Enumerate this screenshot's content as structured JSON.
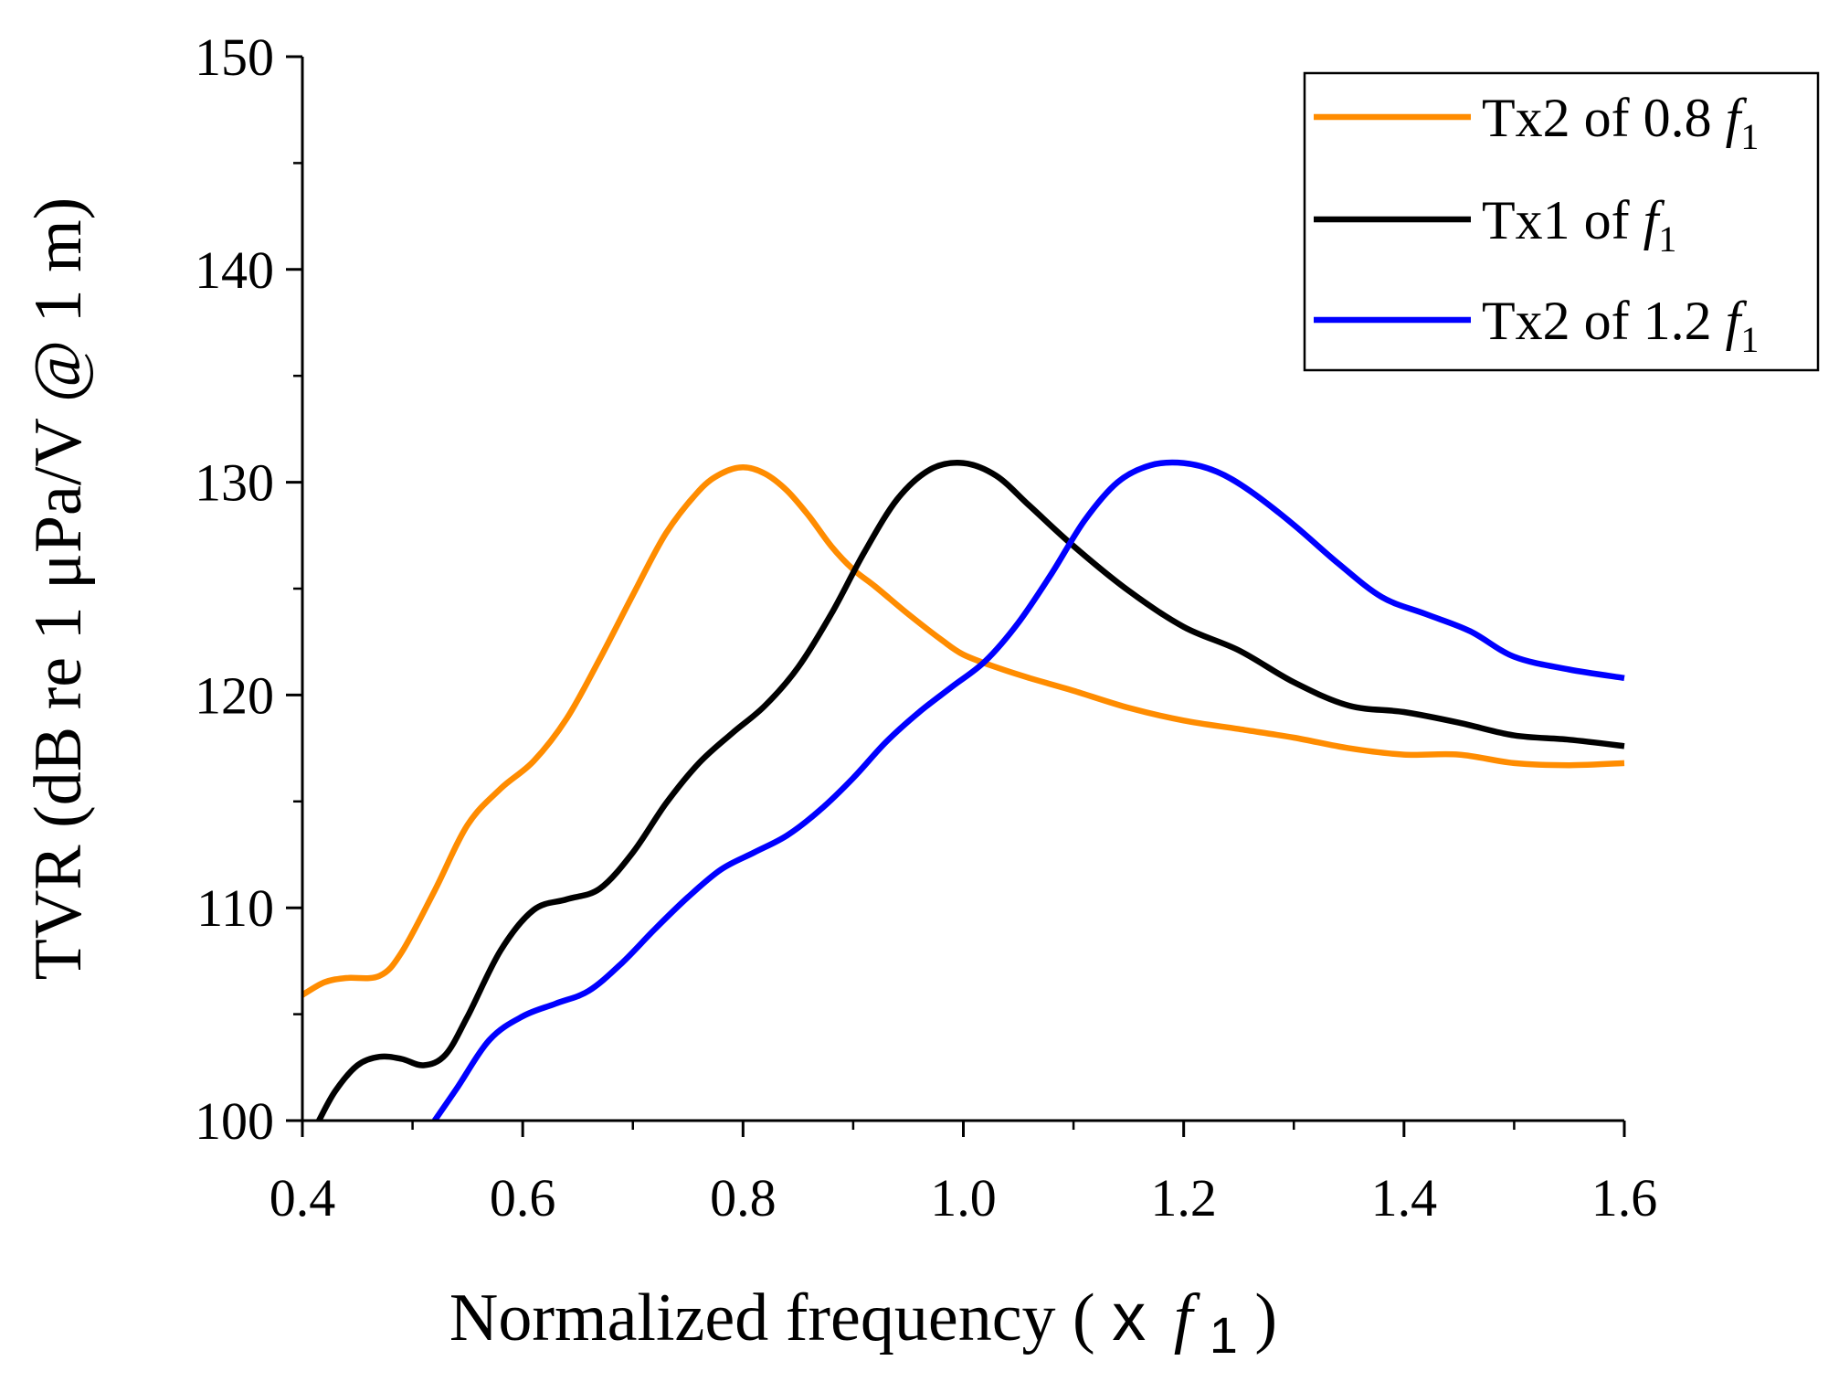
{
  "chart_data": {
    "type": "line",
    "xlabel": {
      "text": "Normalized frequency (",
      "symbol": "x",
      "var": "f",
      "sub": "1",
      "close": ")"
    },
    "ylabel": "TVR (dB re 1 μPa/V @ 1 m)",
    "xlim": [
      0.4,
      1.6
    ],
    "ylim": [
      100,
      150
    ],
    "xticks": [
      "0.4",
      "0.6",
      "0.8",
      "1.0",
      "1.2",
      "1.4",
      "1.6"
    ],
    "yticks": [
      "100",
      "110",
      "120",
      "130",
      "140",
      "150"
    ],
    "grid": false,
    "legend": "top-right",
    "series": [
      {
        "name": "Tx2 of 0.8",
        "name_var": "f",
        "name_sub": "1",
        "color": "#FF8C00",
        "x": [
          0.4,
          0.42,
          0.44,
          0.47,
          0.49,
          0.52,
          0.55,
          0.58,
          0.61,
          0.64,
          0.67,
          0.7,
          0.73,
          0.76,
          0.78,
          0.8,
          0.82,
          0.84,
          0.86,
          0.88,
          0.9,
          0.92,
          0.95,
          0.98,
          1.0,
          1.03,
          1.06,
          1.1,
          1.15,
          1.2,
          1.25,
          1.3,
          1.35,
          1.4,
          1.45,
          1.5,
          1.55,
          1.6
        ],
        "y": [
          105.9,
          106.5,
          106.7,
          106.8,
          107.9,
          110.8,
          113.9,
          115.6,
          116.9,
          118.9,
          121.7,
          124.7,
          127.6,
          129.6,
          130.4,
          130.7,
          130.4,
          129.6,
          128.4,
          127.0,
          125.9,
          125.1,
          123.8,
          122.6,
          121.9,
          121.3,
          120.8,
          120.2,
          119.4,
          118.8,
          118.4,
          118.0,
          117.5,
          117.2,
          117.2,
          116.8,
          116.7,
          116.8
        ]
      },
      {
        "name": "Tx1 of",
        "name_var": "f",
        "name_sub": "1",
        "color": "#000000",
        "x": [
          0.415,
          0.43,
          0.45,
          0.47,
          0.49,
          0.51,
          0.53,
          0.55,
          0.58,
          0.61,
          0.64,
          0.67,
          0.7,
          0.73,
          0.76,
          0.79,
          0.82,
          0.85,
          0.88,
          0.91,
          0.94,
          0.97,
          1.0,
          1.03,
          1.06,
          1.1,
          1.15,
          1.2,
          1.25,
          1.3,
          1.35,
          1.4,
          1.45,
          1.5,
          1.55,
          1.6
        ],
        "y": [
          100.0,
          101.4,
          102.6,
          103.0,
          102.9,
          102.6,
          103.1,
          104.9,
          108.0,
          109.9,
          110.4,
          110.9,
          112.6,
          114.9,
          116.8,
          118.2,
          119.5,
          121.3,
          123.8,
          126.7,
          129.2,
          130.6,
          130.9,
          130.3,
          128.9,
          127.0,
          124.9,
          123.2,
          122.1,
          120.6,
          119.5,
          119.2,
          118.7,
          118.1,
          117.9,
          117.6
        ]
      },
      {
        "name": "Tx2 of 1.2",
        "name_var": "f",
        "name_sub": "1",
        "color": "#0000FF",
        "x": [
          0.52,
          0.54,
          0.57,
          0.6,
          0.63,
          0.66,
          0.69,
          0.72,
          0.75,
          0.78,
          0.81,
          0.84,
          0.87,
          0.9,
          0.93,
          0.96,
          0.99,
          1.02,
          1.05,
          1.08,
          1.11,
          1.14,
          1.17,
          1.2,
          1.23,
          1.26,
          1.3,
          1.34,
          1.38,
          1.42,
          1.46,
          1.5,
          1.55,
          1.6
        ],
        "y": [
          100.0,
          101.5,
          103.8,
          104.9,
          105.5,
          106.1,
          107.4,
          109.0,
          110.5,
          111.8,
          112.6,
          113.4,
          114.6,
          116.1,
          117.8,
          119.2,
          120.4,
          121.6,
          123.4,
          125.7,
          128.2,
          130.0,
          130.8,
          130.9,
          130.5,
          129.6,
          128.0,
          126.2,
          124.6,
          123.8,
          123.0,
          121.8,
          121.2,
          120.8
        ]
      }
    ]
  }
}
